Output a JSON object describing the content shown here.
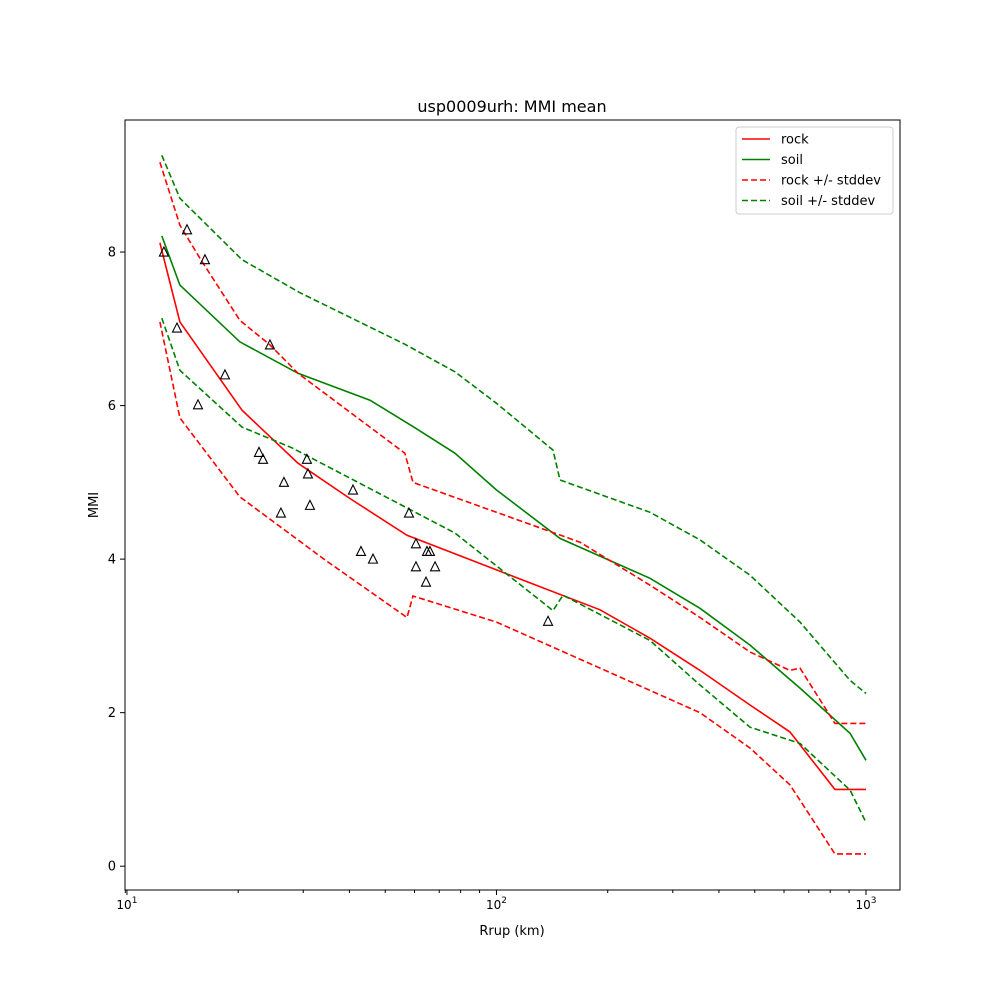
{
  "chart_data": {
    "type": "line",
    "title": "usp0009urh: MMI mean",
    "xlabel": "Rrup (km)",
    "ylabel": "MMI",
    "xscale": "log",
    "xlim": [
      9.88,
      1236
    ],
    "ylim": [
      -0.31,
      9.72
    ],
    "xticks": [
      {
        "value": 10,
        "base": "10",
        "exp": "1"
      },
      {
        "value": 100,
        "base": "10",
        "exp": "2"
      },
      {
        "value": 1000,
        "base": "10",
        "exp": "3"
      }
    ],
    "yticks": [
      0,
      2,
      4,
      6,
      8
    ],
    "grid": false,
    "legend_position": "top-right",
    "series": [
      {
        "name": "rock",
        "color": "#ff0000",
        "dash": false,
        "points": [
          [
            12.28,
            8.12
          ],
          [
            13.91,
            7.09
          ],
          [
            20.48,
            5.94
          ],
          [
            29.03,
            5.25
          ],
          [
            40.13,
            4.79
          ],
          [
            57.26,
            4.31
          ],
          [
            100,
            3.86
          ],
          [
            190.6,
            3.34
          ],
          [
            260.3,
            2.97
          ],
          [
            355.5,
            2.55
          ],
          [
            485.3,
            2.1
          ],
          [
            622.3,
            1.75
          ],
          [
            824,
            1.0
          ],
          [
            1000,
            1.0
          ]
        ]
      },
      {
        "name": "soil",
        "color": "#008000",
        "dash": false,
        "points": [
          [
            12.43,
            8.21
          ],
          [
            13.91,
            7.57
          ],
          [
            20.22,
            6.83
          ],
          [
            29.03,
            6.42
          ],
          [
            45.46,
            6.07
          ],
          [
            60.2,
            5.71
          ],
          [
            77.2,
            5.38
          ],
          [
            100,
            4.9
          ],
          [
            148.6,
            4.27
          ],
          [
            260.3,
            3.75
          ],
          [
            355.5,
            3.36
          ],
          [
            485.3,
            2.88
          ],
          [
            662.7,
            2.32
          ],
          [
            905.7,
            1.73
          ],
          [
            1000,
            1.38
          ]
        ]
      },
      {
        "name": "rock +/- stddev",
        "color": "#ff0000",
        "dash": true,
        "points": [
          [
            12.28,
            9.17
          ],
          [
            13.91,
            8.35
          ],
          [
            15.76,
            7.92
          ],
          [
            20.22,
            7.11
          ],
          [
            24.38,
            6.79
          ],
          [
            29.03,
            6.42
          ],
          [
            56.5,
            5.38
          ],
          [
            59.43,
            5.0
          ],
          [
            168.3,
            4.22
          ],
          [
            260.3,
            3.66
          ],
          [
            355.5,
            3.24
          ],
          [
            485.3,
            2.79
          ],
          [
            622.3,
            2.55
          ],
          [
            662.7,
            2.58
          ],
          [
            824,
            1.86
          ],
          [
            1000,
            1.86
          ]
        ],
        "points_lower": [
          [
            12.28,
            7.09
          ],
          [
            13.91,
            5.84
          ],
          [
            20.22,
            4.81
          ],
          [
            34.36,
            3.99
          ],
          [
            57.26,
            3.24
          ],
          [
            59.43,
            3.52
          ],
          [
            100,
            3.18
          ],
          [
            190.6,
            2.58
          ],
          [
            260.3,
            2.29
          ],
          [
            355.5,
            2.0
          ],
          [
            485.3,
            1.54
          ],
          [
            622.3,
            1.06
          ],
          [
            662.7,
            0.86
          ],
          [
            824,
            0.16
          ],
          [
            1000,
            0.16
          ]
        ]
      },
      {
        "name": "soil +/- stddev",
        "color": "#008000",
        "dash": true,
        "points": [
          [
            12.43,
            9.26
          ],
          [
            13.91,
            8.7
          ],
          [
            20.48,
            7.9
          ],
          [
            29.38,
            7.47
          ],
          [
            56.5,
            6.8
          ],
          [
            77.2,
            6.44
          ],
          [
            100,
            6.03
          ],
          [
            142.2,
            5.42
          ],
          [
            148.6,
            5.03
          ],
          [
            260.3,
            4.61
          ],
          [
            355.5,
            4.25
          ],
          [
            485.3,
            3.79
          ],
          [
            662.7,
            3.18
          ],
          [
            905.7,
            2.42
          ],
          [
            1000,
            2.25
          ]
        ],
        "points_lower": [
          [
            12.43,
            7.14
          ],
          [
            13.91,
            6.46
          ],
          [
            20.48,
            5.72
          ],
          [
            27.96,
            5.45
          ],
          [
            77.2,
            4.34
          ],
          [
            142.2,
            3.33
          ],
          [
            151.4,
            3.53
          ],
          [
            260.3,
            2.94
          ],
          [
            355.5,
            2.36
          ],
          [
            485.3,
            1.81
          ],
          [
            662.7,
            1.6
          ],
          [
            905.7,
            0.99
          ],
          [
            1000,
            0.57
          ]
        ]
      }
    ],
    "observations": {
      "marker": "triangle-open",
      "points": [
        [
          12.59,
          8.0
        ],
        [
          14.54,
          8.29
        ],
        [
          16.26,
          7.9
        ],
        [
          13.66,
          7.01
        ],
        [
          18.42,
          6.4
        ],
        [
          15.57,
          6.01
        ],
        [
          24.38,
          6.79
        ],
        [
          22.77,
          5.39
        ],
        [
          23.35,
          5.3
        ],
        [
          26.6,
          5.0
        ],
        [
          30.69,
          5.3
        ],
        [
          30.89,
          5.11
        ],
        [
          26.1,
          4.6
        ],
        [
          31.28,
          4.7
        ],
        [
          40.9,
          4.9
        ],
        [
          42.99,
          4.1
        ],
        [
          46.33,
          4.0
        ],
        [
          57.97,
          4.6
        ],
        [
          60.55,
          4.2
        ],
        [
          64.86,
          4.1
        ],
        [
          66.07,
          4.1
        ],
        [
          60.55,
          3.9
        ],
        [
          68.2,
          3.9
        ],
        [
          64.46,
          3.7
        ],
        [
          137.9,
          3.19
        ]
      ]
    }
  }
}
